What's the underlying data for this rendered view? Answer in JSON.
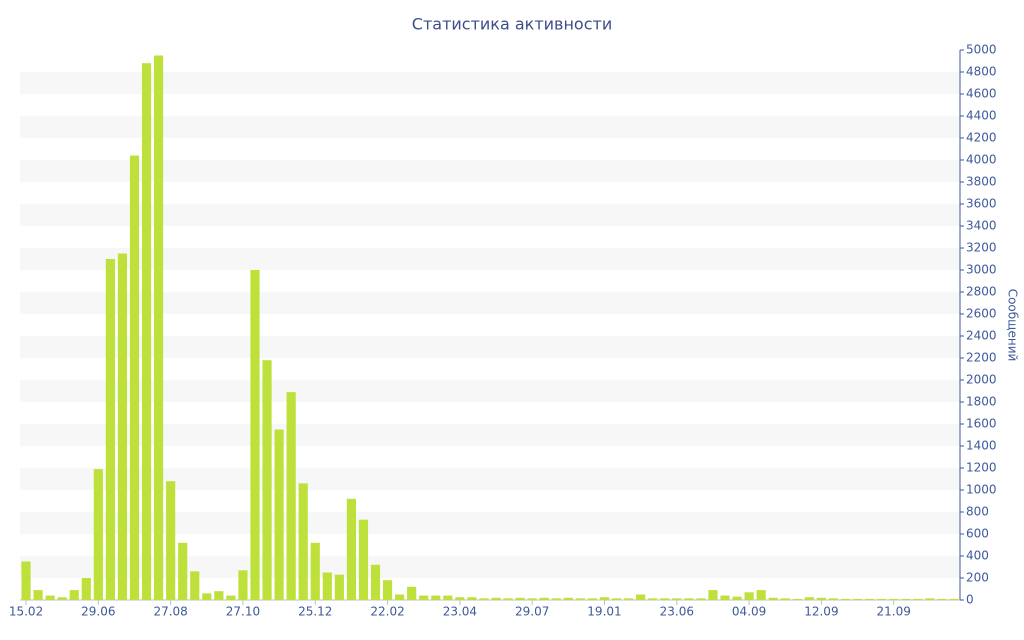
{
  "chart_data": {
    "type": "bar",
    "title": "Статистика активности",
    "y_label": "Сообщений",
    "categories": [
      "15.02",
      null,
      null,
      null,
      null,
      null,
      "29.06",
      null,
      null,
      null,
      null,
      null,
      "27.08",
      null,
      null,
      null,
      null,
      null,
      "27.10",
      null,
      null,
      null,
      null,
      null,
      "25.12",
      null,
      null,
      null,
      null,
      null,
      "22.02",
      null,
      null,
      null,
      null,
      null,
      "23.04",
      null,
      null,
      null,
      null,
      null,
      "29.07",
      null,
      null,
      null,
      null,
      null,
      "19.01",
      null,
      null,
      null,
      null,
      null,
      "23.06",
      null,
      null,
      null,
      null,
      null,
      "04.09",
      null,
      null,
      null,
      null,
      null,
      "12.09",
      null,
      null,
      null,
      null,
      null,
      "21.09",
      null,
      null,
      null,
      null,
      null
    ],
    "values": [
      350,
      90,
      40,
      25,
      90,
      200,
      1190,
      3100,
      3150,
      4040,
      4880,
      4950,
      1080,
      520,
      260,
      60,
      80,
      40,
      270,
      3000,
      2180,
      1550,
      1890,
      1060,
      520,
      250,
      230,
      920,
      730,
      320,
      180,
      50,
      120,
      40,
      40,
      40,
      25,
      25,
      15,
      20,
      15,
      20,
      15,
      20,
      15,
      20,
      15,
      15,
      25,
      15,
      15,
      50,
      15,
      15,
      15,
      15,
      15,
      90,
      40,
      30,
      70,
      90,
      20,
      15,
      10,
      25,
      20,
      15,
      10,
      10,
      10,
      10,
      10,
      10,
      10,
      15,
      10,
      10
    ],
    "color": "#bde03a",
    "ylim": [
      0,
      5000
    ],
    "yticks": [
      0,
      200,
      400,
      600,
      800,
      1000,
      1200,
      1400,
      1600,
      1800,
      2000,
      2200,
      2400,
      2600,
      2800,
      3000,
      3200,
      3400,
      3600,
      3800,
      4000,
      4200,
      4400,
      4600,
      4800,
      5000
    ],
    "grid": true
  }
}
